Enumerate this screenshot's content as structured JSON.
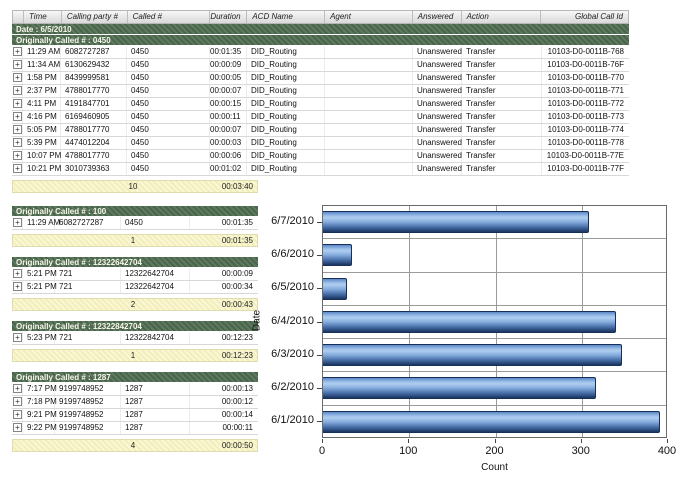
{
  "top_table": {
    "columns": [
      "",
      "Time",
      "Calling party #",
      "Called #",
      "Duration",
      "ACD Name",
      "Agent",
      "Answered",
      "Action",
      "Global Call Id"
    ],
    "date_band": "Date : 6/5/2010",
    "group_band": "Originally Called # : 0450",
    "rows": [
      {
        "time": "11:29 AM",
        "calling": "6082727287",
        "called": "0450",
        "duration": "00:01:35",
        "acd": "DID_Routing",
        "agent": "",
        "answered": "Unanswered",
        "action": "Transfer",
        "global_id": "10103-D0-0011B-768"
      },
      {
        "time": "11:34 AM",
        "calling": "6130629432",
        "called": "0450",
        "duration": "00:00:09",
        "acd": "DID_Routing",
        "agent": "",
        "answered": "Unanswered",
        "action": "Transfer",
        "global_id": "10103-D0-0011B-76F"
      },
      {
        "time": "1:58 PM",
        "calling": "8439999581",
        "called": "0450",
        "duration": "00:00:05",
        "acd": "DID_Routing",
        "agent": "",
        "answered": "Unanswered",
        "action": "Transfer",
        "global_id": "10103-D0-0011B-770"
      },
      {
        "time": "2:37 PM",
        "calling": "4788017770",
        "called": "0450",
        "duration": "00:00:07",
        "acd": "DID_Routing",
        "agent": "",
        "answered": "Unanswered",
        "action": "Transfer",
        "global_id": "10103-D0-0011B-771"
      },
      {
        "time": "4:11 PM",
        "calling": "4191847701",
        "called": "0450",
        "duration": "00:00:15",
        "acd": "DID_Routing",
        "agent": "",
        "answered": "Unanswered",
        "action": "Transfer",
        "global_id": "10103-D0-0011B-772"
      },
      {
        "time": "4:16 PM",
        "calling": "6169460905",
        "called": "0450",
        "duration": "00:00:11",
        "acd": "DID_Routing",
        "agent": "",
        "answered": "Unanswered",
        "action": "Transfer",
        "global_id": "10103-D0-0011B-773"
      },
      {
        "time": "5:05 PM",
        "calling": "4788017770",
        "called": "0450",
        "duration": "00:00:07",
        "acd": "DID_Routing",
        "agent": "",
        "answered": "Unanswered",
        "action": "Transfer",
        "global_id": "10103-D0-0011B-774"
      },
      {
        "time": "5:39 PM",
        "calling": "4474012204",
        "called": "0450",
        "duration": "00:00:03",
        "acd": "DID_Routing",
        "agent": "",
        "answered": "Unanswered",
        "action": "Transfer",
        "global_id": "10103-D0-0011B-778"
      },
      {
        "time": "10:07 PM",
        "calling": "4788017770",
        "called": "0450",
        "duration": "00:00:06",
        "acd": "DID_Routing",
        "agent": "",
        "answered": "Unanswered",
        "action": "Transfer",
        "global_id": "10103-D0-0011B-77E"
      },
      {
        "time": "10:21 PM",
        "calling": "3010739363",
        "called": "0450",
        "duration": "00:01:02",
        "acd": "DID_Routing",
        "agent": "",
        "answered": "Unanswered",
        "action": "Transfer",
        "global_id": "10103-D0-0011B-77F"
      }
    ],
    "summary": {
      "count": "10",
      "duration": "00:03:40"
    }
  },
  "groups": [
    {
      "header": "Originally Called # : 100",
      "rows": [
        {
          "time": "11:29 AM",
          "calling": "6082727287",
          "called": "0450",
          "duration": "00:01:35"
        }
      ],
      "summary": {
        "count": "1",
        "duration": "00:01:35"
      }
    },
    {
      "header": "Originally Called # : 12322642704",
      "rows": [
        {
          "time": "5:21 PM",
          "calling": "721",
          "called": "12322642704",
          "duration": "00:00:09"
        },
        {
          "time": "5:21 PM",
          "calling": "721",
          "called": "12322642704",
          "duration": "00:00:34"
        }
      ],
      "summary": {
        "count": "2",
        "duration": "00:00:43"
      }
    },
    {
      "header": "Originally Called # : 12322842704",
      "rows": [
        {
          "time": "5:23 PM",
          "calling": "721",
          "called": "12322842704",
          "duration": "00:12:23"
        }
      ],
      "summary": {
        "count": "1",
        "duration": "00:12:23"
      }
    },
    {
      "header": "Originally Called # : 1287",
      "rows": [
        {
          "time": "7:17 PM",
          "calling": "9199748952",
          "called": "1287",
          "duration": "00:00:13"
        },
        {
          "time": "7:18 PM",
          "calling": "9199748952",
          "called": "1287",
          "duration": "00:00:12"
        },
        {
          "time": "9:21 PM",
          "calling": "9199748952",
          "called": "1287",
          "duration": "00:00:14"
        },
        {
          "time": "9:22 PM",
          "calling": "9199748952",
          "called": "1287",
          "duration": "00:00:11"
        }
      ],
      "summary": {
        "count": "4",
        "duration": "00:00:50"
      }
    }
  ],
  "chart_data": {
    "type": "bar",
    "orientation": "horizontal",
    "categories": [
      "6/7/2010",
      "6/6/2010",
      "6/5/2010",
      "6/4/2010",
      "6/3/2010",
      "6/2/2010",
      "6/1/2010"
    ],
    "values": [
      308,
      34,
      28,
      340,
      347,
      317,
      391
    ],
    "title": "",
    "xlabel": "Count",
    "ylabel": "Date",
    "xlim": [
      0,
      400
    ],
    "xticks": [
      0,
      100,
      200,
      300,
      400
    ],
    "grid": "on",
    "legend": "none"
  },
  "colors": {
    "group_band_green": "#537054",
    "summary_yellow": "#f7f4c8",
    "bar_blue_light": "#aecdf0",
    "bar_blue_dark": "#1c3660",
    "header_gray": "#e5e5e5"
  }
}
